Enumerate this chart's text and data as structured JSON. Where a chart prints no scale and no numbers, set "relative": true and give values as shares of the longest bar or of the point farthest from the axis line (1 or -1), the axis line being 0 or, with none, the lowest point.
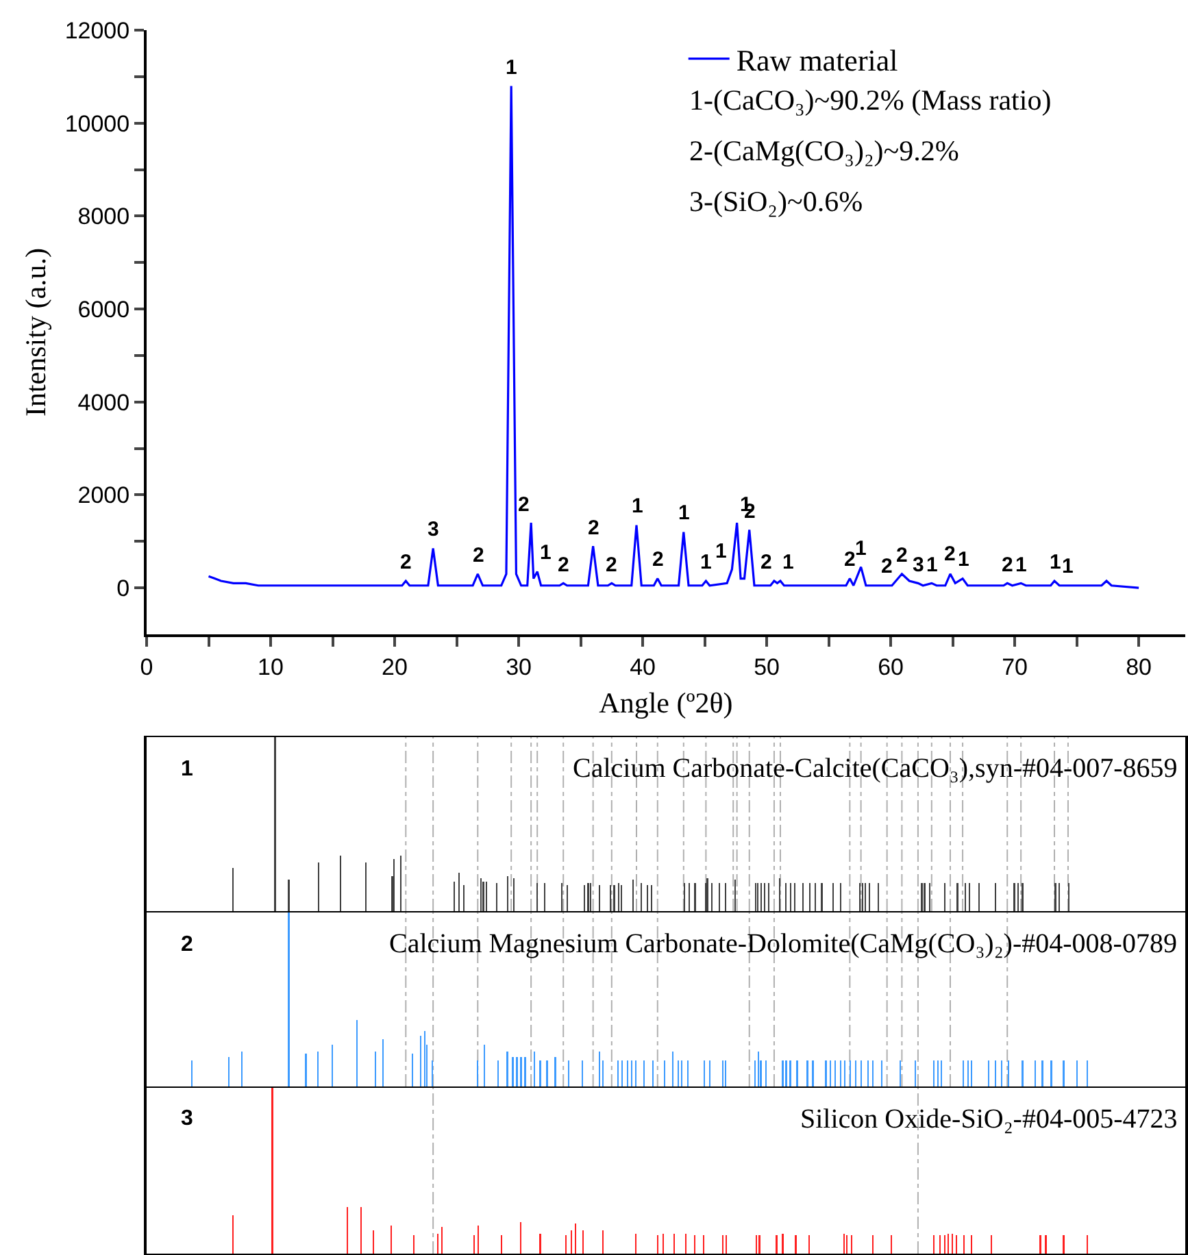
{
  "chart_data": [
    {
      "type": "line",
      "xlabel": "Angle (º2θ)",
      "ylabel": "Intensity (a.u.)",
      "legend": "top right",
      "line_style": "solid",
      "x": [
        5,
        5.5,
        6,
        7,
        8,
        9,
        10,
        12,
        15,
        20,
        20.6,
        20.9,
        21.2,
        22.7,
        23.1,
        23.5,
        24.5,
        26.3,
        26.7,
        27.1,
        28.6,
        29.0,
        29.4,
        29.8,
        30.2,
        30.7,
        31.0,
        31.2,
        31.5,
        31.8,
        33.3,
        33.6,
        33.9,
        35.6,
        36.0,
        36.4,
        37.2,
        37.5,
        37.8,
        39.1,
        39.5,
        39.9,
        40.9,
        41.2,
        41.5,
        42.9,
        43.3,
        43.7,
        44.8,
        45.1,
        45.4,
        46.8,
        47.2,
        47.6,
        47.9,
        48.2,
        48.6,
        49.0,
        50.3,
        50.6,
        50.85,
        51.1,
        51.4,
        56.4,
        56.7,
        57.0,
        57.6,
        58.0,
        59.4,
        59.7,
        60.1,
        60.9,
        61.5,
        62.2,
        62.6,
        63.3,
        63.7,
        64.4,
        64.8,
        65.2,
        65.8,
        66.2,
        69.1,
        69.4,
        69.8,
        70.5,
        70.9,
        72.9,
        73.2,
        73.6,
        74.3,
        74.7,
        77.0,
        77.4,
        77.8,
        80
      ],
      "series": [
        {
          "name": "Raw material",
          "color": "#0000ff",
          "values": [
            250,
            200,
            150,
            100,
            100,
            50,
            50,
            50,
            50,
            50,
            50,
            150,
            50,
            50,
            850,
            50,
            50,
            50,
            300,
            50,
            50,
            300,
            10800,
            300,
            50,
            50,
            1400,
            200,
            350,
            50,
            50,
            100,
            50,
            50,
            900,
            50,
            50,
            100,
            50,
            50,
            1350,
            50,
            50,
            200,
            50,
            50,
            1200,
            50,
            50,
            150,
            50,
            100,
            400,
            1400,
            200,
            200,
            1250,
            50,
            50,
            150,
            100,
            150,
            50,
            50,
            200,
            50,
            450,
            50,
            50,
            50,
            50,
            300,
            150,
            100,
            50,
            100,
            50,
            50,
            300,
            100,
            200,
            50,
            50,
            100,
            50,
            100,
            50,
            50,
            150,
            50,
            50,
            50,
            50,
            150,
            50,
            0
          ]
        }
      ],
      "xlim": [
        0,
        83.75
      ],
      "xticks": [
        0,
        {
          "value": 5,
          "label": null
        },
        10,
        {
          "value": 15,
          "label": null
        },
        20,
        {
          "value": 25,
          "label": null
        },
        30,
        {
          "value": 35,
          "label": null
        },
        40,
        {
          "value": 45,
          "label": null
        },
        50,
        {
          "value": 55,
          "label": null
        },
        60,
        {
          "value": 65,
          "label": null
        },
        70,
        {
          "value": 75,
          "label": null
        },
        80
      ],
      "ylim": [
        -1000,
        12000
      ],
      "yticks": [
        0,
        {
          "value": 1000,
          "label": null
        },
        2000,
        {
          "value": 3000,
          "label": null
        },
        4000,
        {
          "value": 5000,
          "label": null
        },
        6000,
        {
          "value": 7000,
          "label": null
        },
        8000,
        {
          "value": 9000,
          "label": null
        },
        10000,
        {
          "value": 11000,
          "label": null
        },
        12000
      ],
      "annotations": [
        "1-(CaCO₃)~90.2% (Mass ratio)",
        "2-(CaMg(CO₃)₂)~9.2%",
        "3-(SiO₂)~0.6%",
        {
          "text": "2",
          "x": 20.9,
          "y": 150
        },
        {
          "text": "3",
          "x": 23.1,
          "y": 850
        },
        {
          "text": "2",
          "x": 26.7,
          "y": 300
        },
        {
          "text": "1",
          "x": 29.4,
          "y": 10800
        },
        {
          "text": "2",
          "x": 31.0,
          "y": 1400
        },
        {
          "text": "1",
          "x": 31.5,
          "y": 350
        },
        {
          "text": "2",
          "x": 33.6,
          "y": 100
        },
        {
          "text": "2",
          "x": 36.0,
          "y": 900
        },
        {
          "text": "2",
          "x": 37.5,
          "y": 100
        },
        {
          "text": "1",
          "x": 39.5,
          "y": 1350
        },
        {
          "text": "2",
          "x": 41.2,
          "y": 220
        },
        {
          "text": "1",
          "x": 43.3,
          "y": 1200
        },
        {
          "text": "1",
          "x": 45.1,
          "y": 150
        },
        {
          "text": "1",
          "x": 47.0,
          "y": 400
        },
        {
          "text": "1",
          "x": 47.6,
          "y": 1400
        },
        {
          "text": "2",
          "x": 48.6,
          "y": 1250
        },
        {
          "text": "2",
          "x": 50.6,
          "y": 150
        },
        {
          "text": "1",
          "x": 51.1,
          "y": 150
        },
        {
          "text": "2",
          "x": 56.7,
          "y": 200
        },
        {
          "text": "1",
          "x": 57.6,
          "y": 450
        },
        {
          "text": "2",
          "x": 59.7,
          "y": 50
        },
        {
          "text": "2",
          "x": 60.9,
          "y": 300
        },
        {
          "text": "3",
          "x": 62.2,
          "y": 100
        },
        {
          "text": "1",
          "x": 63.3,
          "y": 100
        },
        {
          "text": "2",
          "x": 64.8,
          "y": 320
        },
        {
          "text": "1",
          "x": 65.8,
          "y": 200
        },
        {
          "text": "2",
          "x": 69.4,
          "y": 100
        },
        {
          "text": "1",
          "x": 70.5,
          "y": 100
        },
        {
          "text": "1",
          "x": 73.2,
          "y": 150
        },
        {
          "text": "1",
          "x": 74.3,
          "y": 50
        }
      ]
    },
    {
      "type": "bar",
      "relative": true,
      "xlim": [
        0,
        83.75
      ],
      "x": [
        6.94,
        10.36,
        11.46,
        13.88,
        15.65,
        17.67,
        19.8,
        19.94,
        20.5,
        24.8,
        25.2,
        25.6,
        26.96,
        27.15,
        27.4,
        28.25,
        29.1,
        29.6,
        31.5,
        32.1,
        33.5,
        33.9,
        35.3,
        35.6,
        35.8,
        36.5,
        37.4,
        37.7,
        38.05,
        38.3,
        39.2,
        39.9,
        40.4,
        40.7,
        43.38,
        43.75,
        44.22,
        45.07,
        45.22,
        45.58,
        46.17,
        46.68,
        47.46,
        49.11,
        49.29,
        49.55,
        49.84,
        50.14,
        51.05,
        51.53,
        51.94,
        52.27,
        52.93,
        53.48,
        53.92,
        54.44,
        55.35,
        55.94,
        57.52,
        57.71,
        57.96,
        58.26,
        58.99,
        62.51,
        62.73,
        63.14,
        64.35,
        65.38,
        66.01,
        66.34,
        67.14,
        68.46,
        69.97,
        70.27,
        70.63,
        73.28,
        73.57,
        74.35
      ],
      "series": [
        {
          "color": "#404040",
          "values": [
            0.25,
            1,
            0.18,
            0.28,
            0.32,
            0.28,
            0.2,
            0.3,
            0.32,
            0.17,
            0.22,
            0.15,
            0.19,
            0.17,
            0.17,
            0.16,
            0.2,
            0.19,
            0.16,
            0.16,
            0.16,
            0.15,
            0.15,
            0.16,
            0.16,
            0.15,
            0.15,
            0.15,
            0.16,
            0.15,
            0.18,
            0.16,
            0.15,
            0.15,
            0.16,
            0.16,
            0.16,
            0.16,
            0.19,
            0.16,
            0.16,
            0.16,
            0.18,
            0.16,
            0.16,
            0.16,
            0.16,
            0.16,
            0.19,
            0.16,
            0.16,
            0.16,
            0.16,
            0.16,
            0.16,
            0.16,
            0.16,
            0.16,
            0.16,
            0.16,
            0.16,
            0.16,
            0.16,
            0.16,
            0.16,
            0.16,
            0.16,
            0.16,
            0.16,
            0.16,
            0.16,
            0.16,
            0.16,
            0.16,
            0.16,
            0.16,
            0.16,
            0.16
          ]
        }
      ],
      "ref_lines": [
        {
          "axis": "x",
          "value": 20.9,
          "color": "#b0b0b0",
          "line_style": "dashed"
        },
        {
          "axis": "x",
          "value": 23.1,
          "color": "#b0b0b0",
          "line_style": "dashed"
        },
        {
          "axis": "x",
          "value": 26.7,
          "color": "#b0b0b0",
          "line_style": "dashed"
        },
        {
          "axis": "x",
          "value": 29.4,
          "color": "#b0b0b0",
          "line_style": "dashed"
        },
        {
          "axis": "x",
          "value": 31.0,
          "color": "#b0b0b0",
          "line_style": "dashed"
        },
        {
          "axis": "x",
          "value": 31.5,
          "color": "#b0b0b0",
          "line_style": "dashed"
        },
        {
          "axis": "x",
          "value": 33.6,
          "color": "#b0b0b0",
          "line_style": "dashed"
        },
        {
          "axis": "x",
          "value": 36.0,
          "color": "#b0b0b0",
          "line_style": "dashed"
        },
        {
          "axis": "x",
          "value": 37.5,
          "color": "#b0b0b0",
          "line_style": "dashed"
        },
        {
          "axis": "x",
          "value": 39.5,
          "color": "#b0b0b0",
          "line_style": "dashed"
        },
        {
          "axis": "x",
          "value": 41.2,
          "color": "#b0b0b0",
          "line_style": "dashed"
        },
        {
          "axis": "x",
          "value": 43.3,
          "color": "#b0b0b0",
          "line_style": "dashed"
        },
        {
          "axis": "x",
          "value": 45.1,
          "color": "#b0b0b0",
          "line_style": "dashed"
        },
        {
          "axis": "x",
          "value": 47.3,
          "color": "#b0b0b0",
          "line_style": "dashed"
        },
        {
          "axis": "x",
          "value": 47.6,
          "color": "#b0b0b0",
          "line_style": "dashed"
        },
        {
          "axis": "x",
          "value": 48.6,
          "color": "#b0b0b0",
          "line_style": "dashed"
        },
        {
          "axis": "x",
          "value": 50.6,
          "color": "#b0b0b0",
          "line_style": "dashed"
        },
        {
          "axis": "x",
          "value": 51.1,
          "color": "#b0b0b0",
          "line_style": "dashed"
        },
        {
          "axis": "x",
          "value": 56.7,
          "color": "#b0b0b0",
          "line_style": "dashed"
        },
        {
          "axis": "x",
          "value": 57.6,
          "color": "#b0b0b0",
          "line_style": "dashed"
        },
        {
          "axis": "x",
          "value": 59.7,
          "color": "#b0b0b0",
          "line_style": "dashed"
        },
        {
          "axis": "x",
          "value": 60.9,
          "color": "#b0b0b0",
          "line_style": "dashed"
        },
        {
          "axis": "x",
          "value": 62.2,
          "color": "#b0b0b0",
          "line_style": "dashed"
        },
        {
          "axis": "x",
          "value": 63.3,
          "color": "#b0b0b0",
          "line_style": "dashed"
        },
        {
          "axis": "x",
          "value": 64.8,
          "color": "#b0b0b0",
          "line_style": "dashed"
        },
        {
          "axis": "x",
          "value": 65.8,
          "color": "#b0b0b0",
          "line_style": "dashed"
        },
        {
          "axis": "x",
          "value": 69.4,
          "color": "#b0b0b0",
          "line_style": "dashed"
        },
        {
          "axis": "x",
          "value": 70.5,
          "color": "#b0b0b0",
          "line_style": "dashed"
        },
        {
          "axis": "x",
          "value": 73.2,
          "color": "#b0b0b0",
          "line_style": "dashed"
        },
        {
          "axis": "x",
          "value": 74.3,
          "color": "#b0b0b0",
          "line_style": "dashed"
        }
      ],
      "annotations": [
        "1",
        "Calcium Carbonate-Calcite(CaCO₃),syn-#04-007-8659"
      ]
    },
    {
      "type": "bar",
      "relative": true,
      "xlim": [
        0,
        83.75
      ],
      "x": [
        3.64,
        6.61,
        7.66,
        11.46,
        12.84,
        13.83,
        14.99,
        16.97,
        18.46,
        19.06,
        21.43,
        22.09,
        22.42,
        22.59,
        23.03,
        26.67,
        27.22,
        28.32,
        29.09,
        29.53,
        29.86,
        30.19,
        30.52,
        31.29,
        31.74,
        32.29,
        32.95,
        34.05,
        35.15,
        36.53,
        36.8,
        38.02,
        38.35,
        38.79,
        39.12,
        39.45,
        40.11,
        40.83,
        41.76,
        42.42,
        42.87,
        43.14,
        43.64,
        44.96,
        45.4,
        46.45,
        46.67,
        49.04,
        49.31,
        49.53,
        49.92,
        51.29,
        51.57,
        51.9,
        52.45,
        53.28,
        53.72,
        54.77,
        55.15,
        55.54,
        55.98,
        56.31,
        56.75,
        57.19,
        57.63,
        58.18,
        58.57,
        59.28,
        60.77,
        61.98,
        63.47,
        63.8,
        64.08,
        65.84,
        66.23,
        66.5,
        67.88,
        68.43,
        68.93,
        69.48,
        70.63,
        71.63,
        72.23,
        72.95,
        73.94,
        75.04,
        75.87
      ],
      "series": [
        {
          "color": "#3d9bff",
          "values": [
            0.15,
            0.17,
            0.2,
            1,
            0.19,
            0.2,
            0.24,
            0.38,
            0.2,
            0.27,
            0.19,
            0.29,
            0.32,
            0.24,
            0.15,
            0.15,
            0.24,
            0.15,
            0.2,
            0.17,
            0.17,
            0.17,
            0.17,
            0.2,
            0.15,
            0.15,
            0.17,
            0.15,
            0.15,
            0.2,
            0.15,
            0.15,
            0.15,
            0.15,
            0.15,
            0.15,
            0.15,
            0.15,
            0.15,
            0.2,
            0.15,
            0.15,
            0.15,
            0.15,
            0.15,
            0.15,
            0.15,
            0.15,
            0.2,
            0.15,
            0.15,
            0.15,
            0.15,
            0.15,
            0.15,
            0.15,
            0.15,
            0.15,
            0.15,
            0.15,
            0.15,
            0.15,
            0.15,
            0.15,
            0.15,
            0.15,
            0.15,
            0.15,
            0.15,
            0.15,
            0.15,
            0.15,
            0.15,
            0.15,
            0.15,
            0.15,
            0.15,
            0.15,
            0.15,
            0.15,
            0.15,
            0.15,
            0.15,
            0.15,
            0.15,
            0.15,
            0.15
          ]
        }
      ],
      "ref_lines": [
        {
          "axis": "x",
          "value": 20.9,
          "color": "#b0b0b0",
          "line_style": "dashed"
        },
        {
          "axis": "x",
          "value": 23.1,
          "color": "#b0b0b0",
          "line_style": "dashed"
        },
        {
          "axis": "x",
          "value": 26.7,
          "color": "#b0b0b0",
          "line_style": "dashed"
        },
        {
          "axis": "x",
          "value": 31.0,
          "color": "#b0b0b0",
          "line_style": "dashed"
        },
        {
          "axis": "x",
          "value": 33.6,
          "color": "#b0b0b0",
          "line_style": "dashed"
        },
        {
          "axis": "x",
          "value": 36.0,
          "color": "#b0b0b0",
          "line_style": "dashed"
        },
        {
          "axis": "x",
          "value": 37.5,
          "color": "#b0b0b0",
          "line_style": "dashed"
        },
        {
          "axis": "x",
          "value": 41.2,
          "color": "#b0b0b0",
          "line_style": "dashed"
        },
        {
          "axis": "x",
          "value": 48.6,
          "color": "#b0b0b0",
          "line_style": "dashed"
        },
        {
          "axis": "x",
          "value": 50.6,
          "color": "#b0b0b0",
          "line_style": "dashed"
        },
        {
          "axis": "x",
          "value": 56.7,
          "color": "#b0b0b0",
          "line_style": "dashed"
        },
        {
          "axis": "x",
          "value": 59.7,
          "color": "#b0b0b0",
          "line_style": "dashed"
        },
        {
          "axis": "x",
          "value": 60.9,
          "color": "#b0b0b0",
          "line_style": "dashed"
        },
        {
          "axis": "x",
          "value": 62.2,
          "color": "#b0b0b0",
          "line_style": "dashed"
        },
        {
          "axis": "x",
          "value": 64.8,
          "color": "#b0b0b0",
          "line_style": "dashed"
        },
        {
          "axis": "x",
          "value": 69.4,
          "color": "#b0b0b0",
          "line_style": "dashed"
        }
      ],
      "annotations": [
        "2",
        "Calcium Magnesium Carbonate-Dolomite(CaMg(CO₃)₂)-#04-008-0789"
      ]
    },
    {
      "type": "bar",
      "relative": true,
      "xlim": [
        0,
        83.75
      ],
      "x": [
        6.94,
        10.14,
        16.2,
        17.3,
        18.29,
        19.72,
        21.54,
        23.47,
        23.8,
        26.39,
        26.72,
        28.6,
        30.14,
        31.74,
        33.83,
        34.27,
        34.6,
        35.21,
        36.8,
        39.45,
        41.21,
        41.65,
        42.53,
        43.47,
        44.19,
        44.9,
        46.45,
        46.72,
        49.15,
        49.42,
        50.8,
        51.29,
        52.34,
        53.44,
        56.25,
        56.47,
        56.86,
        58.57,
        60.06,
        63.47,
        63.97,
        64.35,
        64.63,
        64.96,
        65.29,
        65.9,
        66.5,
        68.1,
        72.07,
        72.51,
        73.94,
        75.83
      ],
      "series": [
        {
          "color": "#ff2020",
          "values": [
            0.23,
            1,
            0.28,
            0.28,
            0.14,
            0.17,
            0.11,
            0.12,
            0.16,
            0.11,
            0.17,
            0.11,
            0.19,
            0.12,
            0.11,
            0.14,
            0.18,
            0.14,
            0.14,
            0.12,
            0.11,
            0.12,
            0.12,
            0.12,
            0.11,
            0.11,
            0.11,
            0.11,
            0.11,
            0.11,
            0.11,
            0.12,
            0.11,
            0.11,
            0.12,
            0.11,
            0.11,
            0.11,
            0.11,
            0.11,
            0.11,
            0.11,
            0.12,
            0.12,
            0.11,
            0.11,
            0.11,
            0.11,
            0.11,
            0.11,
            0.11,
            0.11
          ]
        }
      ],
      "ref_lines": [
        {
          "axis": "x",
          "value": 23.1,
          "color": "#b0b0b0",
          "line_style": "dashed"
        },
        {
          "axis": "x",
          "value": 62.2,
          "color": "#b0b0b0",
          "line_style": "dashed"
        }
      ],
      "annotations": [
        "3",
        "Silicon Oxide-SiO₂-#04-005-4723"
      ]
    }
  ]
}
